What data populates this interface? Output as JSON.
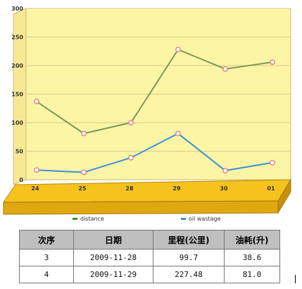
{
  "chart_data": {
    "type": "line",
    "categories": [
      "24",
      "25",
      "28",
      "29",
      "30",
      "01"
    ],
    "ylim": [
      0,
      300
    ],
    "yticks": [
      0,
      50,
      100,
      150,
      200,
      250,
      300
    ],
    "grid": true,
    "legend_position": "bottom",
    "series": [
      {
        "name": "distance",
        "color": "#7a9a57",
        "values": [
          137,
          81,
          100,
          228,
          194,
          206
        ]
      },
      {
        "name": "oil wastage",
        "color": "#3a8fd8",
        "values": [
          17,
          13,
          38.6,
          81,
          16,
          30
        ]
      }
    ]
  },
  "table": {
    "headers": [
      "次序",
      "日期",
      "里程(公里)",
      "油耗(升)"
    ],
    "rows": [
      [
        "3",
        "2009-11-28",
        "99.7",
        "38.6"
      ],
      [
        "4",
        "2009-11-29",
        "227.48",
        "81.0"
      ]
    ]
  },
  "colors": {
    "plot_bg": "#fdf5a6",
    "floor": "#e8b619",
    "grid": "#d8c98a"
  }
}
